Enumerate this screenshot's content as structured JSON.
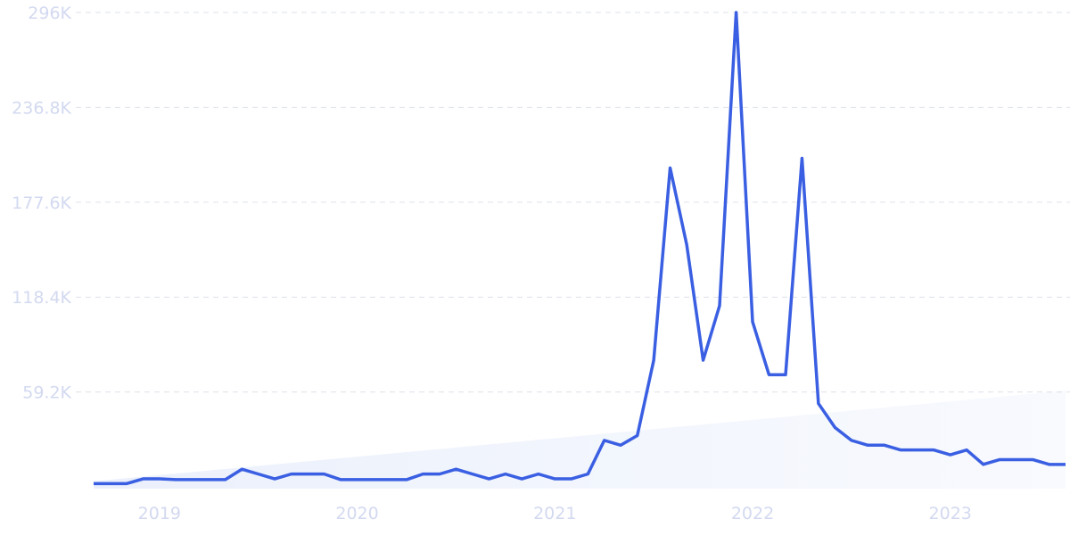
{
  "chart_data": {
    "type": "line",
    "x": [
      2018.667,
      2018.75,
      2018.833,
      2018.917,
      2019,
      2019.083,
      2019.167,
      2019.25,
      2019.333,
      2019.417,
      2019.5,
      2019.583,
      2019.667,
      2019.75,
      2019.833,
      2019.917,
      2020,
      2020.083,
      2020.167,
      2020.25,
      2020.333,
      2020.417,
      2020.5,
      2020.583,
      2020.667,
      2020.75,
      2020.833,
      2020.917,
      2021,
      2021.083,
      2021.167,
      2021.25,
      2021.333,
      2021.417,
      2021.5,
      2021.583,
      2021.667,
      2021.75,
      2021.833,
      2021.917,
      2022,
      2022.083,
      2022.167,
      2022.25,
      2022.333,
      2022.417,
      2022.5,
      2022.583,
      2022.667,
      2022.75,
      2022.833,
      2022.917,
      2023,
      2023.083,
      2023.167,
      2023.25,
      2023.333,
      2023.417,
      2023.5,
      2023.583
    ],
    "series": [
      {
        "color": "#3a5fe2",
        "values": [
          2000,
          2000,
          2000,
          5000,
          5000,
          4500,
          4500,
          4500,
          4500,
          11000,
          8000,
          5000,
          8000,
          8000,
          8000,
          4500,
          4500,
          4500,
          4500,
          4500,
          8000,
          8000,
          11000,
          8000,
          5000,
          8000,
          5000,
          8000,
          5000,
          5000,
          8000,
          29000,
          26000,
          32000,
          79000,
          199000,
          151000,
          79000,
          113000,
          296000,
          103000,
          70000,
          70000,
          205000,
          52000,
          37000,
          29000,
          26000,
          26000,
          23000,
          23000,
          23000,
          20000,
          23000,
          14000,
          17000,
          17000,
          17000,
          14000,
          14000
        ]
      }
    ],
    "trend": {
      "start": 3500,
      "end": 60000
    },
    "xlim": [
      2018.667,
      2023.583
    ],
    "xticks": [
      2019,
      2020,
      2021,
      2022,
      2023
    ],
    "ylim": [
      0,
      296000
    ],
    "yticks": [
      {
        "value": 59200,
        "label": "59.2K"
      },
      {
        "value": 118400,
        "label": "118.4K"
      },
      {
        "value": 177600,
        "label": "177.6K"
      },
      {
        "value": 236800,
        "label": "236.8K"
      },
      {
        "value": 296000,
        "label": "296K"
      }
    ],
    "grid": true
  }
}
